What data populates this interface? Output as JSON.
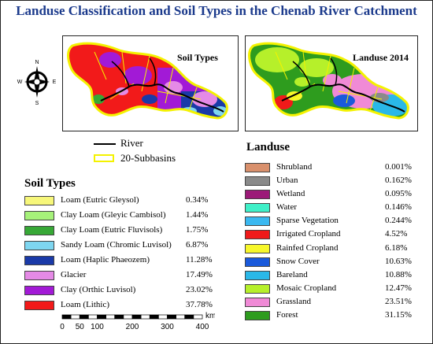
{
  "title": "Landuse Classification and Soil Types in the Chenab River Catchment",
  "panels": {
    "soil": {
      "label": "Soil Types"
    },
    "landuse": {
      "label": "Landuse 2014"
    }
  },
  "compass": {
    "n": "N",
    "s": "S",
    "e": "E",
    "w": "W"
  },
  "legend": {
    "river": "River",
    "subbasins": "20-Subbasins"
  },
  "soil_types": {
    "heading": "Soil Types",
    "items": [
      {
        "name": "Loam (Eutric Gleysol)",
        "percent": "0.34%",
        "color": "#f7f77a"
      },
      {
        "name": "Clay Loam (Gleyic Cambisol)",
        "percent": "1.44%",
        "color": "#a6f27a"
      },
      {
        "name": "Clay Loam (Eutric Fluvisols)",
        "percent": "1.75%",
        "color": "#37a836"
      },
      {
        "name": "Sandy Loam (Chromic Luvisol)",
        "percent": "6.87%",
        "color": "#7ed6f0"
      },
      {
        "name": "Loam (Haplic Phaeozem)",
        "percent": "11.28%",
        "color": "#1a3aa8"
      },
      {
        "name": "Glacier",
        "percent": "17.49%",
        "color": "#e58ae6"
      },
      {
        "name": "Clay (Orthic Luvisol)",
        "percent": "23.02%",
        "color": "#a21ad6"
      },
      {
        "name": "Loam (Lithic)",
        "percent": "37.78%",
        "color": "#f21a1a"
      }
    ]
  },
  "landuse": {
    "heading": "Landuse",
    "items": [
      {
        "name": "Shrubland",
        "percent": "0.001%",
        "color": "#d9906c"
      },
      {
        "name": "Urban",
        "percent": "0.162%",
        "color": "#8a8a8a"
      },
      {
        "name": "Wetland",
        "percent": "0.095%",
        "color": "#9c1a78"
      },
      {
        "name": "Water",
        "percent": "0.146%",
        "color": "#3ff0c8"
      },
      {
        "name": "Sparse Vegetation",
        "percent": "0.244%",
        "color": "#3ab8f0"
      },
      {
        "name": "Irrigated Cropland",
        "percent": "4.52%",
        "color": "#f01a1a"
      },
      {
        "name": "Rainfed Cropland",
        "percent": "6.18%",
        "color": "#f7f72a"
      },
      {
        "name": "Snow Cover",
        "percent": "10.63%",
        "color": "#1a5adb"
      },
      {
        "name": "Bareland",
        "percent": "10.88%",
        "color": "#2ab8e8"
      },
      {
        "name": "Mosaic Cropland",
        "percent": "12.47%",
        "color": "#b6f02a"
      },
      {
        "name": "Grassland",
        "percent": "23.51%",
        "color": "#f08ad6"
      },
      {
        "name": "Forest",
        "percent": "31.15%",
        "color": "#2e9c1e"
      }
    ]
  },
  "scalebar": {
    "unit": "km",
    "ticks": [
      0,
      50,
      100,
      200,
      300,
      400
    ]
  }
}
